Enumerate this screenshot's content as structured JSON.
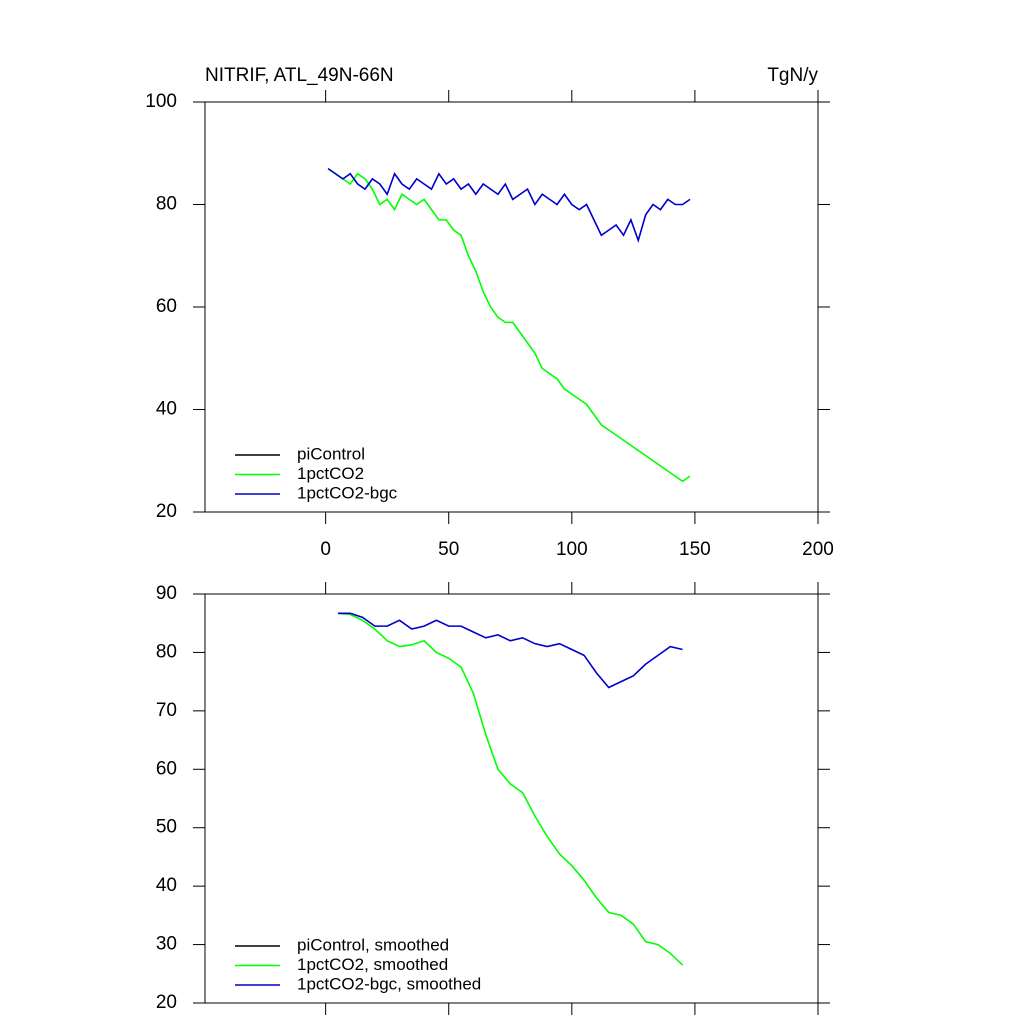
{
  "chart_data": [
    {
      "type": "line",
      "title": "NITRIF, ATL_49N-66N",
      "units_label": "TgN/y",
      "x": [
        1,
        4,
        7,
        10,
        13,
        16,
        19,
        22,
        25,
        28,
        31,
        34,
        37,
        40,
        43,
        46,
        49,
        52,
        55,
        58,
        61,
        64,
        67,
        70,
        73,
        76,
        79,
        82,
        85,
        88,
        91,
        94,
        97,
        100,
        103,
        106,
        109,
        112,
        115,
        118,
        121,
        124,
        127,
        130,
        133,
        136,
        139,
        142,
        145,
        148
      ],
      "series": [
        {
          "name": "piControl",
          "color": "#000000",
          "values": [
            null,
            null,
            null,
            null,
            null,
            null,
            null,
            null,
            null,
            null,
            null,
            null,
            null,
            null,
            null,
            null,
            null,
            null,
            null,
            null,
            null,
            null,
            null,
            null,
            null,
            null,
            null,
            null,
            null,
            null,
            null,
            null,
            null,
            null,
            null,
            null,
            null,
            null,
            null,
            null,
            null,
            null,
            null,
            null,
            null,
            null,
            null,
            null,
            null,
            null
          ]
        },
        {
          "name": "1pctCO2",
          "color": "#00ff00",
          "values": [
            87,
            86,
            85,
            84,
            86,
            85,
            83,
            80,
            81,
            79,
            82,
            81,
            80,
            81,
            79,
            77,
            77,
            75,
            74,
            70,
            67,
            63,
            60,
            58,
            57,
            57,
            55,
            53,
            51,
            48,
            47,
            46,
            44,
            43,
            42,
            41,
            39,
            37,
            36,
            35,
            34,
            33,
            32,
            31,
            30,
            29,
            28,
            27,
            26,
            27
          ]
        },
        {
          "name": "1pctCO2-bgc",
          "color": "#0000cc",
          "values": [
            87,
            86,
            85,
            86,
            84,
            83,
            85,
            84,
            82,
            86,
            84,
            83,
            85,
            84,
            83,
            86,
            84,
            85,
            83,
            84,
            82,
            84,
            83,
            82,
            84,
            81,
            82,
            83,
            80,
            82,
            81,
            80,
            82,
            80,
            79,
            80,
            77,
            74,
            75,
            76,
            74,
            77,
            73,
            78,
            80,
            79,
            81,
            80,
            80,
            81
          ]
        }
      ],
      "xlim": [
        -49,
        200
      ],
      "xticks": [
        0,
        50,
        100,
        150,
        200
      ],
      "x_tick_labels": true,
      "ylim": [
        20,
        100
      ],
      "yticks": [
        20,
        40,
        60,
        80,
        100
      ],
      "legend": "lower left"
    },
    {
      "type": "line",
      "x": [
        5,
        10,
        15,
        20,
        25,
        30,
        35,
        40,
        45,
        50,
        55,
        60,
        65,
        70,
        75,
        80,
        85,
        90,
        95,
        100,
        105,
        110,
        115,
        120,
        125,
        130,
        135,
        140,
        145
      ],
      "series": [
        {
          "name": "piControl, smoothed",
          "color": "#000000",
          "values": [
            null,
            null,
            null,
            null,
            null,
            null,
            null,
            null,
            null,
            null,
            null,
            null,
            null,
            null,
            null,
            null,
            null,
            null,
            null,
            null,
            null,
            null,
            null,
            null,
            null,
            null,
            null,
            null,
            null
          ]
        },
        {
          "name": "1pctCO2, smoothed",
          "color": "#00ff00",
          "values": [
            86.7,
            86.5,
            85.5,
            84,
            82,
            81,
            81.3,
            82,
            80,
            79,
            77.5,
            73,
            66,
            60,
            57.5,
            56,
            52,
            48.5,
            45.5,
            43.5,
            41,
            38,
            35.5,
            35,
            33.5,
            30.5,
            30,
            28.5,
            26.5
          ]
        },
        {
          "name": "1pctCO2-bgc, smoothed",
          "color": "#0000cc",
          "values": [
            86.7,
            86.7,
            86,
            84.5,
            84.5,
            85.5,
            84,
            84.5,
            85.5,
            84.5,
            84.5,
            83.5,
            82.5,
            83,
            82,
            82.5,
            81.5,
            81,
            81.5,
            80.5,
            79.5,
            76.5,
            74,
            75,
            76,
            78,
            79.5,
            81,
            80.5
          ]
        }
      ],
      "xlim": [
        -49,
        200
      ],
      "xticks": [
        0,
        50,
        100,
        150,
        200
      ],
      "x_tick_labels": false,
      "ylim": [
        20,
        90
      ],
      "yticks": [
        20,
        30,
        40,
        50,
        60,
        70,
        80,
        90
      ],
      "legend": "lower left"
    }
  ]
}
